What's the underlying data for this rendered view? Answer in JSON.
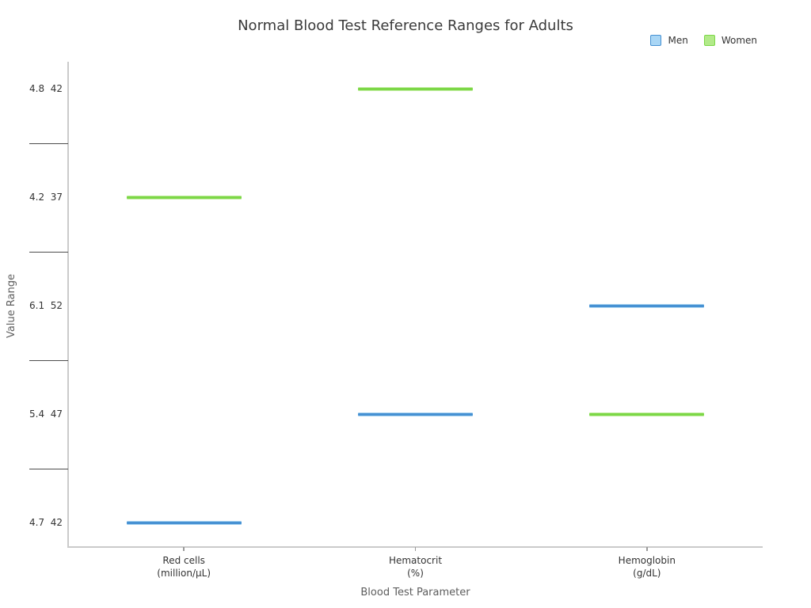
{
  "chart_data": {
    "type": "scatter",
    "marker_style": "horizontal-dash",
    "title": "Normal Blood Test Reference Ranges for Adults",
    "xlabel": "Blood Test Parameter",
    "ylabel": "Value Range",
    "legend_position": "top-right",
    "grid": false,
    "categories": [
      {
        "label": "Red cells",
        "unit": "(million/μL)"
      },
      {
        "label": "Hematocrit",
        "unit": "(%)"
      },
      {
        "label": "Hemoglobin",
        "unit": "(g/dL)"
      }
    ],
    "y_axis_rows_top_to_bottom": [
      "4.8  42",
      "4.2  37",
      "6.1  52",
      "5.4  47",
      "4.7  42"
    ],
    "series": [
      {
        "name": "Men",
        "color": "#4691d3",
        "halo": "#a8d3f0",
        "legend_fill": "#a9d6f5",
        "values": [
          "4.7  42",
          "5.4  47",
          "6.1  52"
        ]
      },
      {
        "name": "Women",
        "color": "#7cd747",
        "halo": "#c3eda1",
        "legend_fill": "#b2ea89",
        "values": [
          "4.2  37",
          "4.8  42",
          "5.4  47"
        ]
      }
    ]
  }
}
